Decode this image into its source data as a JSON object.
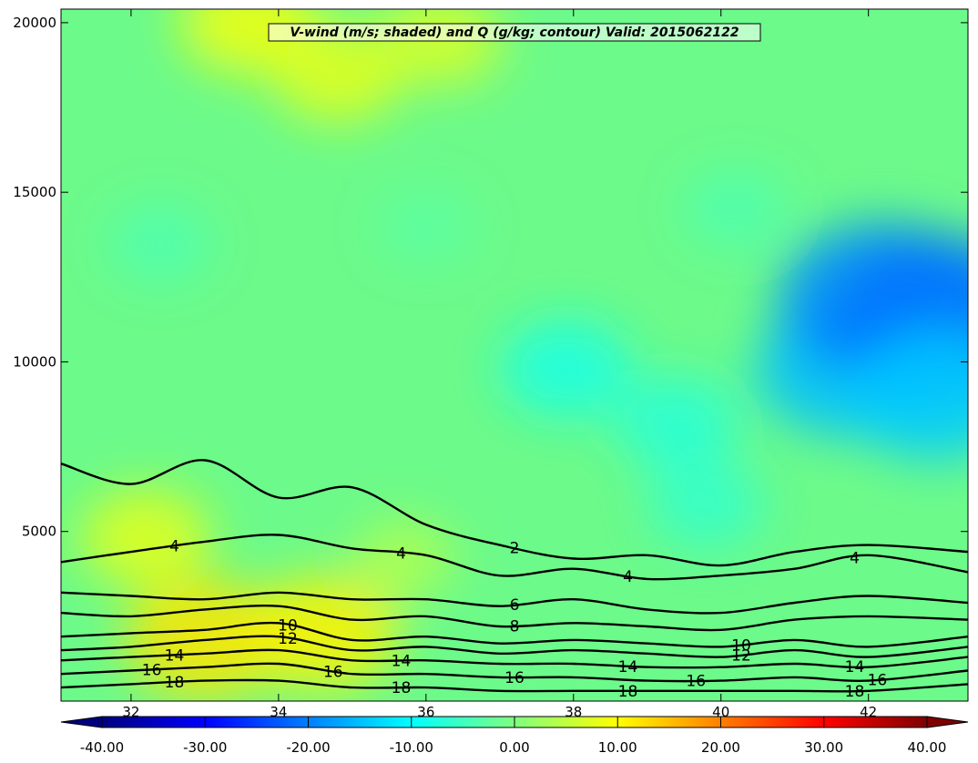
{
  "chart_data": {
    "type": "contour",
    "title": "V-wind (m/s; shaded) and Q (g/kg; contour) Valid: 2015062122",
    "xlabel": "",
    "ylabel": "",
    "xlim": [
      31.05,
      43.35
    ],
    "ylim": [
      0,
      20400
    ],
    "x_ticks": [
      32,
      34,
      36,
      38,
      40,
      42
    ],
    "x_tick_labels": [
      "32",
      "34",
      "36",
      "38",
      "40",
      "42"
    ],
    "y_ticks": [
      5000,
      10000,
      15000,
      20000
    ],
    "y_tick_labels": [
      "5000",
      "10000",
      "15000",
      "20000"
    ],
    "grid": false,
    "shaded_field": {
      "name": "V-wind (m/s)",
      "colorbar_range": [
        -40,
        40
      ],
      "colorbar_ticks": [
        -40,
        -30,
        -20,
        -10,
        0,
        10,
        20,
        30,
        40
      ],
      "colorbar_tick_labels": [
        "-40.00",
        "-30.00",
        "-20.00",
        "-10.00",
        "0.00",
        "10.00",
        "20.00",
        "30.00",
        "40.00"
      ],
      "colormap": [
        "#00007f",
        "#0000ff",
        "#007fff",
        "#00ffff",
        "#7fff7f",
        "#ffff00",
        "#ff7f00",
        "#ff0000",
        "#7f0000"
      ],
      "colorbar_extend": "both",
      "colorbar_orientation": "horizontal"
    },
    "contour_field": {
      "name": "Q (g/kg)",
      "color": "#000000",
      "levels": [
        2,
        4,
        6,
        8,
        10,
        12,
        14,
        16,
        18
      ],
      "visible_labels": [
        "2",
        "4",
        "4",
        "4",
        "4",
        "6",
        "8",
        "10",
        "12",
        "12",
        "10",
        "14",
        "14",
        "14",
        "14",
        "16",
        "16",
        "16",
        "16",
        "16",
        "18",
        "18",
        "18",
        "18"
      ],
      "approx_heights_m": [
        {
          "level": 2,
          "x": [
            31.05,
            32,
            33,
            34,
            35,
            36,
            37,
            38,
            39,
            40,
            41,
            42,
            43.35
          ],
          "y": [
            7000,
            6400,
            7100,
            6000,
            6300,
            5200,
            4600,
            4200,
            4300,
            4000,
            4400,
            4600,
            4400
          ]
        },
        {
          "level": 4,
          "x": [
            31.05,
            32,
            33,
            34,
            35,
            36,
            37,
            38,
            39,
            40,
            41,
            42,
            43.35
          ],
          "y": [
            4100,
            4400,
            4700,
            4900,
            4500,
            4300,
            3700,
            3900,
            3600,
            3700,
            3900,
            4300,
            3800
          ]
        },
        {
          "level": 6,
          "x": [
            31.05,
            32,
            33,
            34,
            35,
            36,
            37,
            38,
            39,
            40,
            41,
            42,
            43.35
          ],
          "y": [
            3200,
            3100,
            3000,
            3200,
            3000,
            3000,
            2800,
            3000,
            2700,
            2600,
            2900,
            3100,
            2900
          ]
        },
        {
          "level": 8,
          "x": [
            31.05,
            32,
            33,
            34,
            35,
            36,
            37,
            38,
            39,
            40,
            41,
            42,
            43.35
          ],
          "y": [
            2600,
            2500,
            2700,
            2800,
            2400,
            2500,
            2200,
            2300,
            2200,
            2100,
            2400,
            2500,
            2400
          ]
        },
        {
          "level": 10,
          "x": [
            31.05,
            32,
            33,
            34,
            35,
            36,
            37,
            38,
            39,
            40,
            41,
            42,
            43.35
          ],
          "y": [
            1900,
            2000,
            2100,
            2300,
            1800,
            1900,
            1700,
            1800,
            1700,
            1600,
            1800,
            1600,
            1900
          ]
        },
        {
          "level": 12,
          "x": [
            31.05,
            32,
            33,
            34,
            35,
            36,
            37,
            38,
            39,
            40,
            41,
            42,
            43.35
          ],
          "y": [
            1500,
            1600,
            1800,
            1900,
            1500,
            1600,
            1400,
            1500,
            1400,
            1300,
            1500,
            1300,
            1600
          ]
        },
        {
          "level": 14,
          "x": [
            31.05,
            32,
            33,
            34,
            35,
            36,
            37,
            38,
            39,
            40,
            41,
            42,
            43.35
          ],
          "y": [
            1200,
            1300,
            1400,
            1500,
            1200,
            1200,
            1100,
            1100,
            1000,
            1000,
            1100,
            1000,
            1300
          ]
        },
        {
          "level": 16,
          "x": [
            31.05,
            32,
            33,
            34,
            35,
            36,
            37,
            38,
            39,
            40,
            41,
            42,
            43.35
          ],
          "y": [
            800,
            900,
            1000,
            1100,
            800,
            800,
            700,
            700,
            600,
            600,
            700,
            600,
            900
          ]
        },
        {
          "level": 18,
          "x": [
            31.05,
            32,
            33,
            34,
            35,
            36,
            37,
            38,
            39,
            40,
            41,
            42,
            43.35
          ],
          "y": [
            400,
            500,
            600,
            600,
            400,
            400,
            300,
            300,
            300,
            300,
            300,
            300,
            500
          ]
        }
      ]
    },
    "shaded_patches_ms": [
      {
        "x": 33.0,
        "y": 1800,
        "value": 12
      },
      {
        "x": 34.6,
        "y": 2000,
        "value": 11
      },
      {
        "x": 32.2,
        "y": 4800,
        "value": 8
      },
      {
        "x": 33.6,
        "y": 20000,
        "value": 9
      },
      {
        "x": 34.8,
        "y": 18500,
        "value": 8
      },
      {
        "x": 36.2,
        "y": 19500,
        "value": 7
      },
      {
        "x": 37.9,
        "y": 9800,
        "value": -8
      },
      {
        "x": 39.4,
        "y": 8200,
        "value": -7
      },
      {
        "x": 40.2,
        "y": 14500,
        "value": -4
      },
      {
        "x": 41.7,
        "y": 9800,
        "value": -15
      },
      {
        "x": 42.2,
        "y": 11800,
        "value": -19
      },
      {
        "x": 43.0,
        "y": 11200,
        "value": -21
      },
      {
        "x": 42.9,
        "y": 9000,
        "value": -14
      },
      {
        "x": 36.0,
        "y": 14000,
        "value": -3
      },
      {
        "x": 32.4,
        "y": 13500,
        "value": -4
      },
      {
        "x": 39.8,
        "y": 5800,
        "value": -6
      },
      {
        "x": 35.7,
        "y": 4200,
        "value": 4
      }
    ]
  }
}
